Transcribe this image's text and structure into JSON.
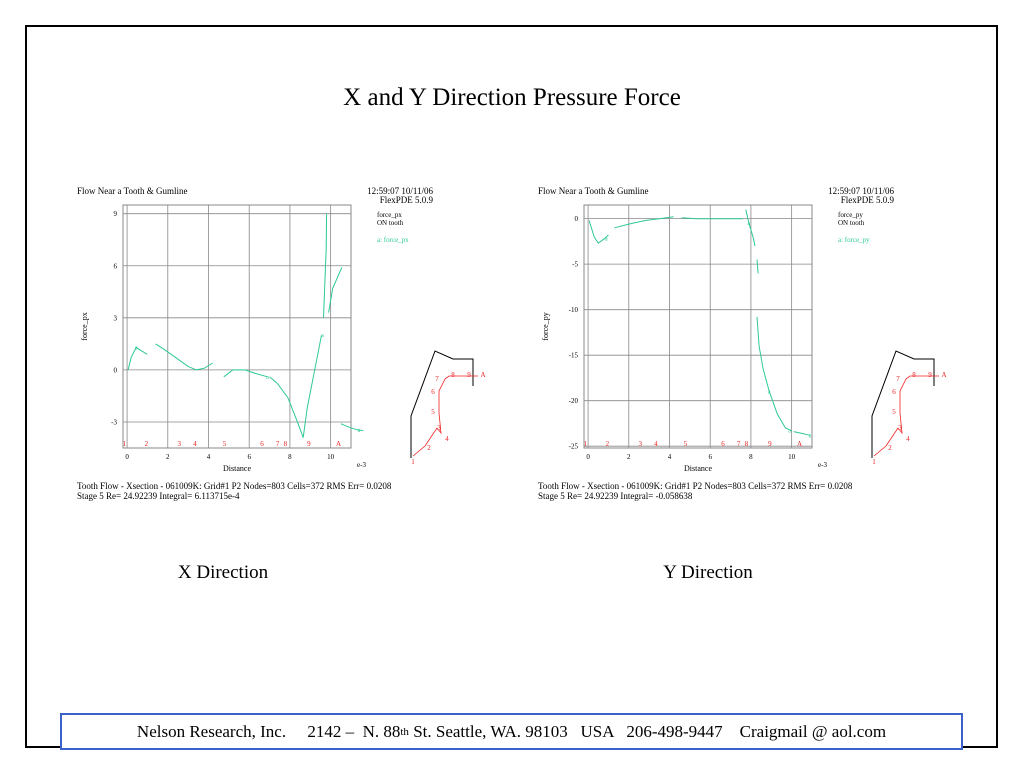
{
  "slide": {
    "title": "X and Y Direction Pressure Force",
    "footer": {
      "company": "Nelson Research, Inc.",
      "address_pre": "2142 –  N. 88",
      "address_sup": "th",
      "address_post": " St. Seattle, WA. 98103   USA   206-498-9447    Craigmail @ aol.com"
    },
    "colors": {
      "curve": "#2ec995",
      "label_red": "#ee2222",
      "footer_border": "#3a62c8"
    }
  },
  "chart_data": [
    {
      "type": "line",
      "caption": "X Direction",
      "plot_title": "Flow Near a Tooth & Gumline",
      "timestamp": "12:59:07 10/11/06",
      "version": "FlexPDE 5.0.9",
      "legend_title": "force_px",
      "legend_subtitle": "ON tooth",
      "legend_entry": "a: force_px",
      "xlabel": "Distance",
      "ylabel": "force_px",
      "x_exponent": "e-3",
      "xlim": [
        -0.2,
        11
      ],
      "ylim": [
        -4.5,
        9.5
      ],
      "xticks": [
        0,
        2,
        4,
        6,
        8,
        10
      ],
      "yticks": [
        -3,
        0,
        3,
        6,
        9
      ],
      "segment_labels": [
        {
          "x": 0.1,
          "text": "1"
        },
        {
          "x": 1.5,
          "text": "2"
        },
        {
          "x": 3.6,
          "text": "3"
        },
        {
          "x": 4.6,
          "text": "4"
        },
        {
          "x": 6.5,
          "text": "5"
        },
        {
          "x": 8.9,
          "text": "6"
        },
        {
          "x": 9.9,
          "text": "7"
        },
        {
          "x": 10.4,
          "text": "8"
        },
        {
          "x": 11.9,
          "text": "9"
        },
        {
          "x": 13.8,
          "text": "A"
        }
      ],
      "segments": [
        [
          [
            0.05,
            0.0
          ],
          [
            0.2,
            0.7
          ],
          [
            0.45,
            1.3
          ],
          [
            0.7,
            1.1
          ],
          [
            1.0,
            0.9
          ]
        ],
        [
          [
            1.4,
            1.5
          ],
          [
            1.8,
            1.2
          ],
          [
            2.4,
            0.7
          ],
          [
            3.0,
            0.2
          ],
          [
            3.4,
            0.0
          ],
          [
            3.8,
            0.1
          ],
          [
            4.2,
            0.4
          ]
        ],
        [
          [
            4.75,
            -0.4
          ],
          [
            5.2,
            0.0
          ],
          [
            5.8,
            0.0
          ],
          [
            6.3,
            -0.2
          ],
          [
            6.9,
            -0.4
          ]
        ],
        [
          [
            7.0,
            -0.4
          ],
          [
            7.4,
            -0.8
          ],
          [
            7.9,
            -1.6
          ],
          [
            8.4,
            -3.1
          ],
          [
            8.65,
            -3.9
          ],
          [
            8.85,
            -2.2
          ],
          [
            9.3,
            0.5
          ],
          [
            9.55,
            2.0
          ]
        ],
        [
          [
            9.65,
            3.0
          ],
          [
            9.7,
            4.5
          ],
          [
            9.78,
            7.0
          ],
          [
            9.8,
            9.0
          ]
        ],
        [
          [
            9.9,
            3.3
          ],
          [
            10.1,
            4.7
          ],
          [
            10.4,
            5.5
          ],
          [
            10.55,
            5.9
          ]
        ],
        [
          [
            10.5,
            -3.1
          ],
          [
            10.9,
            -3.3
          ],
          [
            11.3,
            -3.45
          ],
          [
            11.6,
            -3.5
          ]
        ]
      ],
      "markers": [
        {
          "x": 0.45,
          "text": "a"
        },
        {
          "x": 6.9,
          "text": "a"
        },
        {
          "x": 9.6,
          "text": "a"
        },
        {
          "x": 11.4,
          "text": "a"
        }
      ],
      "info_line1": "Tooth Flow - Xsection - 061009K:   Grid#1  P2   Nodes=803 Cells=372 RMS Err= 0.0208",
      "info_line2": "Stage 5  Re=  24.92239  Integral=  6.113715e-4"
    },
    {
      "type": "line",
      "caption": "Y Direction",
      "plot_title": "Flow Near a Tooth & Gumline",
      "timestamp": "12:59:07 10/11/06",
      "version": "FlexPDE 5.0.9",
      "legend_title": "force_py",
      "legend_subtitle": "ON tooth",
      "legend_entry": "a: force_py",
      "xlabel": "Distance",
      "ylabel": "force_py",
      "x_exponent": "e-3",
      "xlim": [
        -0.2,
        11
      ],
      "ylim": [
        -25.2,
        1.5
      ],
      "xticks": [
        0,
        2,
        4,
        6,
        8,
        10
      ],
      "yticks": [
        -25,
        -20,
        -15,
        -10,
        -5,
        0
      ],
      "segment_labels": [
        {
          "x": 0.1,
          "text": "1"
        },
        {
          "x": 1.5,
          "text": "2"
        },
        {
          "x": 3.6,
          "text": "3"
        },
        {
          "x": 4.6,
          "text": "4"
        },
        {
          "x": 6.5,
          "text": "5"
        },
        {
          "x": 8.9,
          "text": "6"
        },
        {
          "x": 9.9,
          "text": "7"
        },
        {
          "x": 10.4,
          "text": "8"
        },
        {
          "x": 11.9,
          "text": "9"
        },
        {
          "x": 13.8,
          "text": "A"
        }
      ],
      "segments": [
        [
          [
            0.05,
            -0.2
          ],
          [
            0.3,
            -2.0
          ],
          [
            0.5,
            -2.7
          ],
          [
            0.8,
            -2.2
          ],
          [
            1.0,
            -1.8
          ]
        ],
        [
          [
            1.3,
            -1.0
          ],
          [
            2.0,
            -0.6
          ],
          [
            2.8,
            -0.2
          ],
          [
            3.5,
            0.0
          ],
          [
            4.2,
            0.2
          ]
        ],
        [
          [
            4.6,
            0.1
          ],
          [
            5.3,
            0.0
          ],
          [
            6.2,
            0.0
          ],
          [
            6.8,
            0.0
          ],
          [
            7.6,
            0.0
          ]
        ],
        [
          [
            7.75,
            1.0
          ],
          [
            7.9,
            -0.5
          ],
          [
            8.1,
            -2.0
          ],
          [
            8.2,
            -3.0
          ]
        ],
        [
          [
            8.3,
            -4.5
          ],
          [
            8.35,
            -6.0
          ]
        ],
        [
          [
            8.3,
            -10.8
          ],
          [
            8.4,
            -14.0
          ],
          [
            8.6,
            -16.5
          ],
          [
            8.9,
            -19.0
          ],
          [
            9.3,
            -21.5
          ],
          [
            9.7,
            -23.0
          ],
          [
            10.0,
            -23.3
          ]
        ],
        [
          [
            10.1,
            -23.4
          ],
          [
            10.5,
            -23.6
          ],
          [
            10.9,
            -23.8
          ]
        ]
      ],
      "markers": [
        {
          "x": 0.9,
          "text": "a"
        },
        {
          "x": 7.9,
          "text": "a"
        },
        {
          "x": 8.9,
          "text": "a"
        },
        {
          "x": 9.9,
          "text": "a"
        },
        {
          "x": 10.9,
          "text": "a"
        }
      ],
      "info_line1": "Tooth Flow - Xsection - 061009K:   Grid#1  P2   Nodes=803 Cells=372 RMS Err= 0.0208",
      "info_line2": "Stage 5  Re=  24.92239  Integral= -0.058638"
    }
  ],
  "inset_labels": [
    "1",
    "2",
    "3",
    "4",
    "5",
    "6",
    "7",
    "8",
    "9",
    "A"
  ]
}
